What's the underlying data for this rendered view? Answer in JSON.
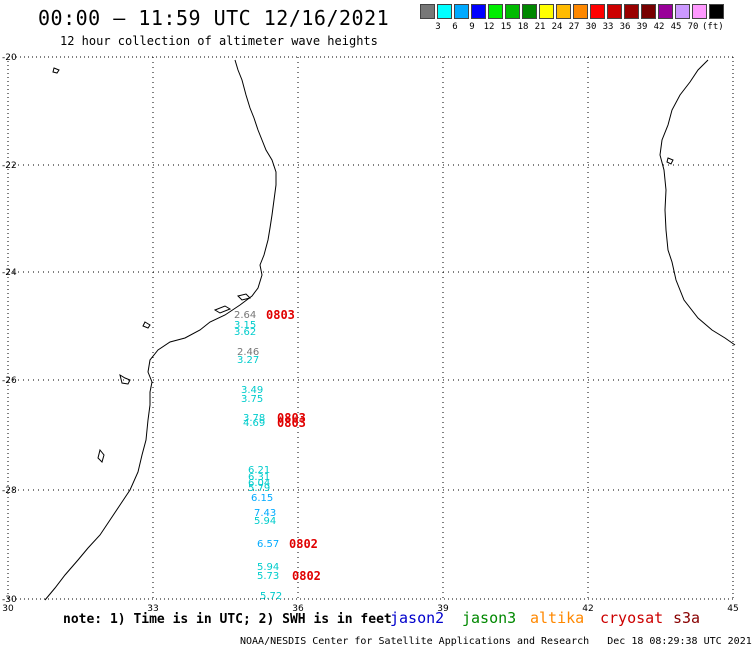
{
  "header": {
    "title": "00:00 – 11:59 UTC 12/16/2021",
    "subtitle": "12 hour collection of altimeter wave heights"
  },
  "legend": {
    "colors": [
      "#777777",
      "#00ffff",
      "#00aaff",
      "#0000ff",
      "#00ee00",
      "#00bb00",
      "#008800",
      "#ffff00",
      "#ffbb00",
      "#ff8800",
      "#ff0000",
      "#cc0000",
      "#990000",
      "#770000",
      "#990099",
      "#cc99ff",
      "#ff99ff",
      "#000000"
    ],
    "ticks": [
      "3",
      "6",
      "9",
      "12",
      "15",
      "18",
      "21",
      "24",
      "27",
      "30",
      "33",
      "36",
      "39",
      "42",
      "45",
      "70"
    ],
    "unit": "(ft)"
  },
  "map": {
    "lat_labels": [
      "-20",
      "-22",
      "-24",
      "-26",
      "-28",
      "-30"
    ],
    "lon_labels": [
      "30",
      "33",
      "36",
      "39",
      "42",
      "45"
    ],
    "wave_heights": [
      {
        "label": "2.64",
        "color": "#777777"
      },
      {
        "label": "3.15",
        "color": "#00cccc"
      },
      {
        "label": "3.62",
        "color": "#00cccc"
      },
      {
        "label": "2.46",
        "color": "#777777"
      },
      {
        "label": "3.27",
        "color": "#00cccc"
      },
      {
        "label": "3.49",
        "color": "#00cccc"
      },
      {
        "label": "3.75",
        "color": "#00cccc"
      },
      {
        "label": "3.78",
        "color": "#00cccc"
      },
      {
        "label": "4.69",
        "color": "#00cccc"
      },
      {
        "label": "6.21",
        "color": "#00cccc"
      },
      {
        "label": "6.31",
        "color": "#00cccc"
      },
      {
        "label": "6.04",
        "color": "#00cccc"
      },
      {
        "label": "5.79",
        "color": "#00cccc"
      },
      {
        "label": "6.15",
        "color": "#00aaff"
      },
      {
        "label": "7.43",
        "color": "#00aaff"
      },
      {
        "label": "5.94",
        "color": "#00cccc"
      },
      {
        "label": "6.57",
        "color": "#00aaff"
      },
      {
        "label": "5.94",
        "color": "#00cccc"
      },
      {
        "label": "5.73",
        "color": "#00cccc"
      },
      {
        "label": "5.72",
        "color": "#00cccc"
      }
    ],
    "pass_times": [
      "0803",
      "0803",
      "0803",
      "0802",
      "0802"
    ]
  },
  "footer": {
    "note": "note: 1) Time is in UTC; 2) SWH is in feet",
    "satellites": [
      {
        "name": "jason2",
        "color": "#0000cc"
      },
      {
        "name": "jason3",
        "color": "#008800"
      },
      {
        "name": "altika",
        "color": "#ff8800"
      },
      {
        "name": "cryosat",
        "color": "#cc0000"
      },
      {
        "name": "s3a",
        "color": "#880000"
      }
    ],
    "credit": "NOAA/NESDIS Center for Satellite Applications and Research   Dec 18 08:29:38 UTC 2021"
  }
}
